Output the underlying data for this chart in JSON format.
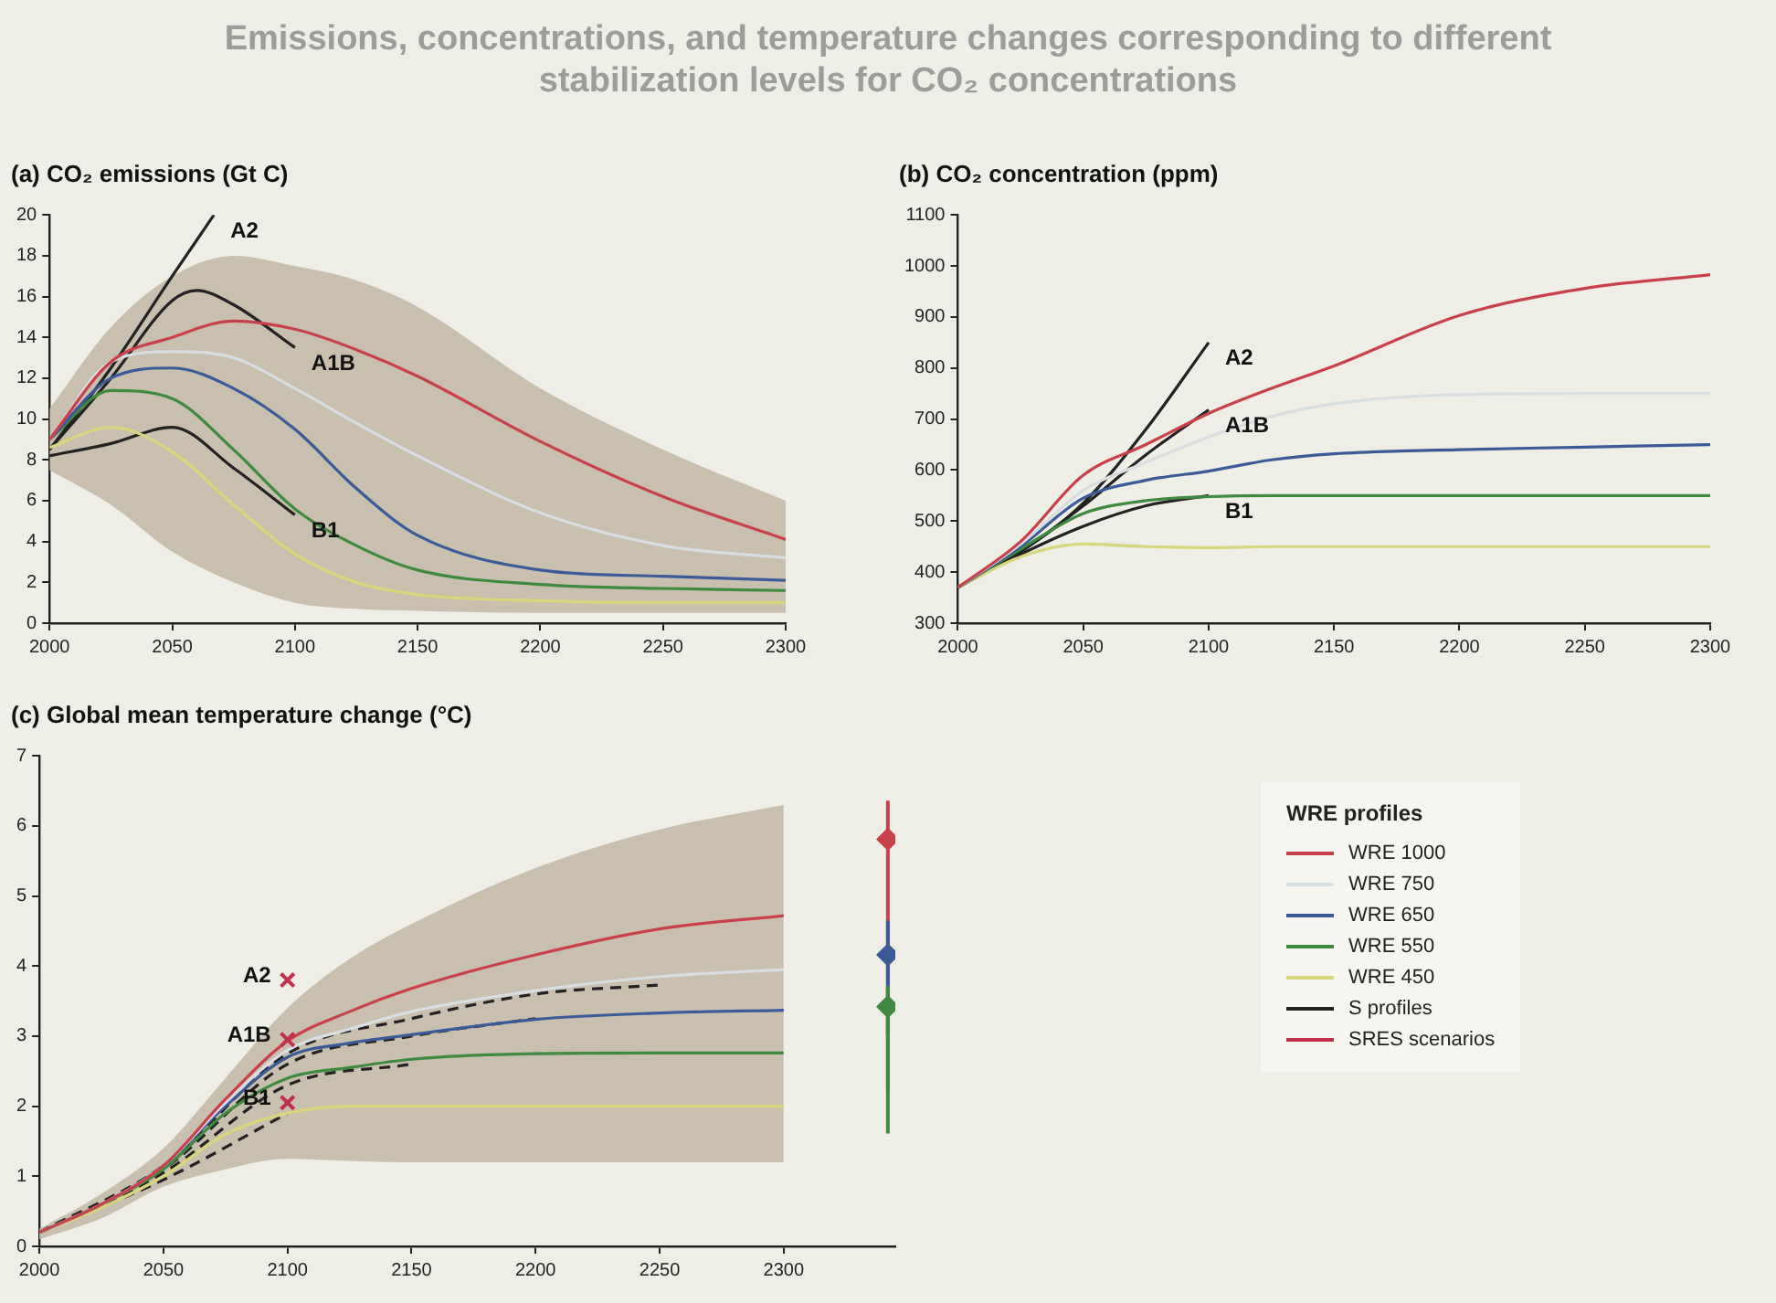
{
  "chart_data": [
    {
      "type": "line",
      "title": "Emissions, concentrations, and temperature changes corresponding to different stabilization levels for CO₂ concentrations",
      "subtitle": "(a) CO₂ emissions (Gt C)",
      "x": [
        2000,
        2025,
        2050,
        2075,
        2100,
        2125,
        2150,
        2200,
        2250,
        2300
      ],
      "xlim": [
        2000,
        2300
      ],
      "xticks": [
        2000,
        2050,
        2100,
        2150,
        2200,
        2250,
        2300
      ],
      "ylim": [
        0,
        20
      ],
      "yticks": [
        0,
        2,
        4,
        6,
        8,
        10,
        12,
        14,
        16,
        18,
        20
      ],
      "series": [
        {
          "color": "#c8404a",
          "values": [
            9.0,
            12.8,
            14.0,
            14.8,
            14.4,
            13.4,
            12.1,
            8.9,
            6.2,
            4.1
          ],
          "lower": [
            7.5,
            5.8,
            3.5,
            2.0,
            1.0,
            0.7,
            0.6,
            0.5,
            0.5,
            0.5
          ],
          "upper": [
            10.5,
            14.5,
            17.0,
            18.0,
            17.5,
            16.8,
            15.5,
            11.5,
            8.5,
            6.0
          ]
        },
        {
          "color": "#d8dde0",
          "values": [
            9.0,
            12.8,
            13.3,
            13.0,
            11.5,
            9.8,
            8.2,
            5.4,
            3.8,
            3.2
          ]
        },
        {
          "color": "#3a5a9a",
          "values": [
            9.0,
            12.0,
            12.5,
            11.5,
            9.5,
            6.6,
            4.3,
            2.6,
            2.3,
            2.1
          ]
        },
        {
          "color": "#3e8a3e",
          "values": [
            9.0,
            11.4,
            11.0,
            8.5,
            5.6,
            3.8,
            2.6,
            1.9,
            1.7,
            1.6
          ]
        },
        {
          "color": "#d6d67a",
          "values": [
            8.6,
            9.6,
            8.4,
            5.8,
            3.4,
            2.0,
            1.4,
            1.1,
            1.0,
            1.0
          ]
        },
        {
          "name": "A2",
          "color": "#222222",
          "x": [
            2000,
            2025,
            2050,
            2067
          ],
          "values": [
            8.5,
            12.5,
            17.0,
            20.0
          ]
        },
        {
          "name": "A1B",
          "color": "#222222",
          "x": [
            2000,
            2025,
            2050,
            2060,
            2075,
            2100
          ],
          "values": [
            8.5,
            12.0,
            15.8,
            16.3,
            15.6,
            13.5
          ]
        },
        {
          "name": "B1",
          "color": "#222222",
          "x": [
            2000,
            2025,
            2050,
            2075,
            2100
          ],
          "values": [
            8.2,
            8.8,
            9.6,
            7.6,
            5.3
          ]
        }
      ]
    },
    {
      "type": "line",
      "title": "(b) CO₂ concentration (ppm)",
      "x": [
        2000,
        2025,
        2050,
        2075,
        2100,
        2125,
        2150,
        2200,
        2250,
        2300
      ],
      "xlim": [
        2000,
        2300
      ],
      "xticks": [
        2000,
        2050,
        2100,
        2150,
        2200,
        2250,
        2300
      ],
      "ylim": [
        300,
        1100
      ],
      "yticks": [
        300,
        400,
        500,
        600,
        700,
        800,
        900,
        1000,
        1100
      ],
      "series": [
        {
          "color": "#c8404a",
          "values": [
            370,
            460,
            590,
            650,
            711,
            760,
            804,
            903,
            956,
            983
          ]
        },
        {
          "color": "#d8dde0",
          "values": [
            370,
            455,
            560,
            615,
            665,
            705,
            730,
            748,
            750,
            750
          ]
        },
        {
          "color": "#3a5a9a",
          "values": [
            370,
            450,
            545,
            580,
            598,
            620,
            632,
            640,
            645,
            650
          ]
        },
        {
          "color": "#3e8a3e",
          "values": [
            370,
            445,
            515,
            540,
            548,
            550,
            550,
            550,
            550,
            550
          ]
        },
        {
          "color": "#d6d67a",
          "values": [
            370,
            430,
            455,
            450,
            448,
            450,
            450,
            450,
            450,
            450
          ]
        },
        {
          "name": "A2",
          "color": "#222222",
          "x": [
            2000,
            2025,
            2050,
            2075,
            2100
          ],
          "values": [
            370,
            440,
            535,
            680,
            850
          ]
        },
        {
          "name": "A1B",
          "color": "#222222",
          "x": [
            2000,
            2025,
            2050,
            2075,
            2100
          ],
          "values": [
            370,
            440,
            530,
            630,
            718
          ]
        },
        {
          "name": "B1",
          "color": "#222222",
          "x": [
            2000,
            2025,
            2050,
            2075,
            2100
          ],
          "values": [
            370,
            435,
            490,
            530,
            550
          ]
        }
      ]
    },
    {
      "type": "line",
      "title": "(c) Global mean temperature change (°C)",
      "x": [
        2000,
        2025,
        2050,
        2075,
        2100,
        2125,
        2150,
        2200,
        2250,
        2300
      ],
      "xlim": [
        2000,
        2345
      ],
      "xticks": [
        2000,
        2050,
        2100,
        2150,
        2200,
        2250,
        2300
      ],
      "ylim": [
        0,
        7
      ],
      "yticks": [
        0,
        1,
        2,
        3,
        4,
        5,
        6,
        7
      ],
      "legend": "right",
      "legend_title": "WRE profiles",
      "series": [
        {
          "name": "WRE 1000",
          "color": "#c8404a",
          "values": [
            0.2,
            0.6,
            1.15,
            2.1,
            2.93,
            3.35,
            3.68,
            4.16,
            4.53,
            4.72
          ],
          "lower": [
            0.1,
            0.4,
            0.85,
            1.1,
            1.25,
            1.22,
            1.2,
            1.2,
            1.2,
            1.2
          ],
          "upper": [
            0.25,
            0.75,
            1.4,
            2.4,
            3.4,
            4.1,
            4.6,
            5.4,
            5.95,
            6.3
          ]
        },
        {
          "name": "WRE 750",
          "color": "#d8dde0",
          "values": [
            0.2,
            0.6,
            1.15,
            2.05,
            2.8,
            3.1,
            3.35,
            3.65,
            3.85,
            3.95
          ]
        },
        {
          "name": "WRE 650",
          "color": "#3a5a9a",
          "values": [
            0.2,
            0.6,
            1.15,
            2.0,
            2.7,
            2.9,
            3.02,
            3.24,
            3.33,
            3.37
          ]
        },
        {
          "name": "WRE 550",
          "color": "#3e8a3e",
          "values": [
            0.2,
            0.6,
            1.1,
            1.9,
            2.4,
            2.55,
            2.67,
            2.75,
            2.76,
            2.76
          ]
        },
        {
          "name": "WRE 450",
          "color": "#d6d67a",
          "values": [
            0.2,
            0.55,
            1.0,
            1.6,
            1.9,
            2.0,
            2.0,
            2.0,
            2.0,
            2.0
          ]
        },
        {
          "name": "S profiles",
          "color": "#222222",
          "line_style": "dashed",
          "x": [
            2000,
            2050,
            2100,
            2150,
            2200,
            2250
          ],
          "values": [
            0.2,
            1.15,
            2.75,
            3.25,
            3.6,
            3.73
          ]
        },
        {
          "color": "#222222",
          "line_style": "dashed",
          "x": [
            2000,
            2050,
            2100,
            2150,
            2200
          ],
          "values": [
            0.2,
            1.1,
            2.6,
            3.0,
            3.25
          ]
        },
        {
          "color": "#222222",
          "line_style": "dashed",
          "x": [
            2000,
            2050,
            2100,
            2150
          ],
          "values": [
            0.2,
            1.05,
            2.3,
            2.6
          ]
        },
        {
          "color": "#222222",
          "line_style": "dashed",
          "x": [
            2000,
            2050,
            2100
          ],
          "values": [
            0.2,
            0.95,
            1.9
          ]
        },
        {
          "name": "SRES scenarios",
          "type": "scatter",
          "marker": "cross",
          "color": "#c0304a",
          "x": [
            2100,
            2100,
            2100
          ],
          "values": [
            3.8,
            2.95,
            2.05
          ]
        },
        {
          "type": "scatter",
          "marker": "diamond",
          "x": [
            2342,
            2342,
            2342
          ],
          "values": [
            5.81,
            4.16,
            3.42
          ],
          "colors": [
            "#c8404a",
            "#3a5a9a",
            "#3e8a3e"
          ],
          "errors": [
            [
              3.02,
              6.36
            ],
            [
              2.23,
              4.65
            ],
            [
              1.61,
              3.72
            ]
          ]
        }
      ],
      "annotations": [
        "A2",
        "A1B",
        "B1"
      ]
    }
  ]
}
